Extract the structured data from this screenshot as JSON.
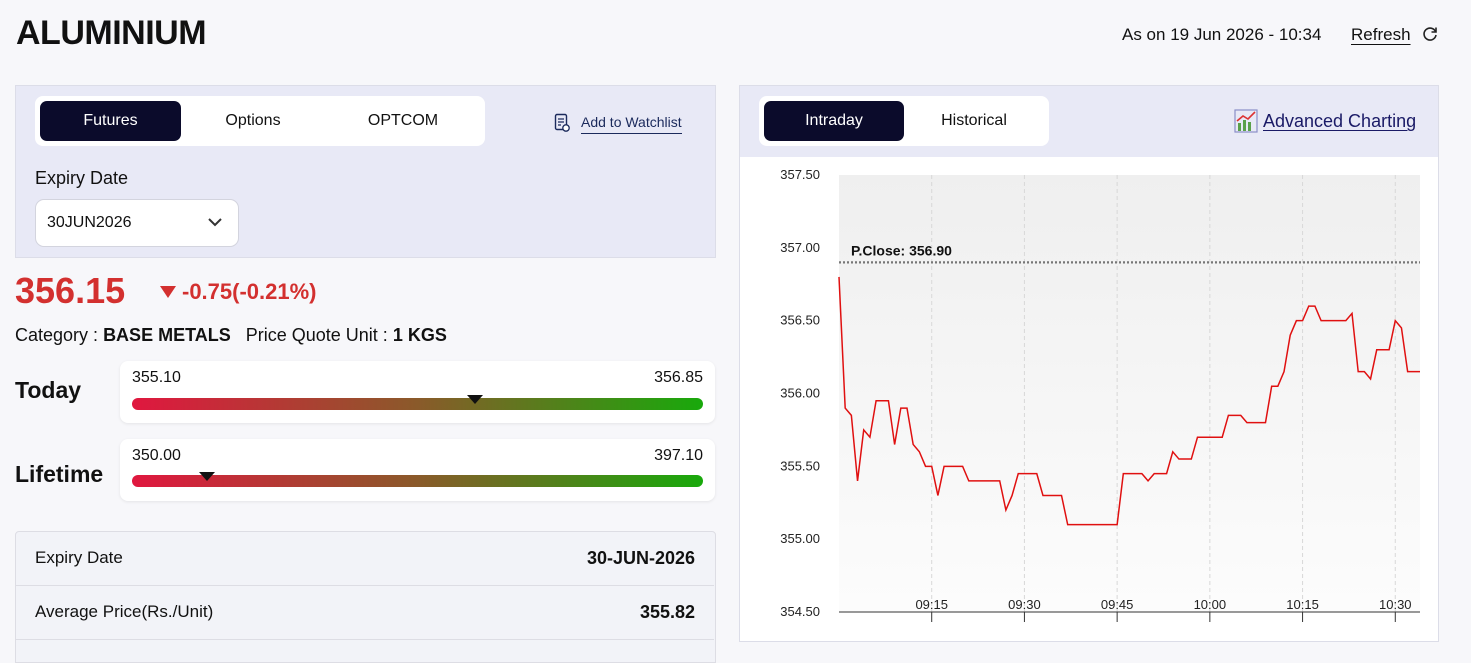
{
  "header": {
    "title": "ALUMINIUM",
    "as_on": "As on 19 Jun 2026 - 10:34",
    "refresh": "Refresh"
  },
  "left_panel": {
    "tabs": [
      "Futures",
      "Options",
      "OPTCOM"
    ],
    "active_tab": 0,
    "watchlist": "Add to Watchlist",
    "expiry_label": "Expiry Date",
    "expiry_select": "30JUN2026"
  },
  "quote": {
    "price": 356.15,
    "change": "-0.75(-0.21%)",
    "category_label": "Category :",
    "category": "BASE METALS",
    "unit_label": "Price Quote Unit :",
    "unit": "1 KGS"
  },
  "ranges": [
    {
      "label": "Today",
      "low": {
        "value": 355.1,
        "label": "355.10"
      },
      "high": 356.85
    },
    {
      "label": "Lifetime",
      "low": {
        "value": 350,
        "label": "350.00"
      },
      "high": {
        "value": 397.1,
        "label": "397.10"
      }
    }
  ],
  "table": {
    "rows": [
      [
        "Expiry Date",
        "30-JUN-2026"
      ],
      [
        "Average Price(Rs./Unit)",
        "355.82"
      ]
    ]
  },
  "right_panel": {
    "tabs": [
      "Intraday",
      "Historical"
    ],
    "active_tab": 0,
    "advanced": "Advanced Charting"
  },
  "chart_data": {
    "type": "line",
    "color": "#e01010",
    "grid": true,
    "x": [
      "09:00",
      "09:01",
      "09:02",
      "09:03",
      "09:04",
      "09:05",
      "09:06",
      "09:08",
      "09:09",
      "09:10",
      "09:11",
      "09:12",
      "09:13",
      "09:14",
      "09:15",
      "09:16",
      "09:17",
      "09:20",
      "09:21",
      "09:26",
      "09:27",
      "09:28",
      "09:29",
      "09:32",
      "09:33",
      "09:36",
      "09:37",
      "09:45",
      "09:46",
      "09:49",
      "09:50",
      "09:51",
      "09:53",
      "09:54",
      "09:55",
      "09:57",
      "09:58",
      "10:02",
      "10:03",
      "10:05",
      "10:06",
      "10:09",
      "10:10",
      "10:11",
      "10:12",
      "10:13",
      "10:14",
      "10:15",
      "10:16",
      "10:17",
      "10:18",
      "10:22",
      "10:23",
      "10:24",
      "10:25",
      "10:26",
      "10:27",
      "10:29",
      "10:30",
      "10:31",
      "10:32",
      "10:34"
    ],
    "values": [
      356.8,
      355.9,
      355.85,
      355.4,
      355.75,
      355.7,
      355.95,
      355.95,
      355.65,
      355.9,
      355.9,
      355.65,
      355.6,
      355.5,
      355.5,
      355.3,
      355.5,
      355.5,
      355.4,
      355.4,
      355.2,
      355.3,
      355.45,
      355.45,
      355.3,
      355.3,
      355.1,
      355.1,
      355.45,
      355.45,
      355.4,
      355.45,
      355.45,
      355.6,
      355.55,
      355.55,
      355.7,
      355.7,
      355.85,
      355.85,
      355.8,
      355.8,
      356.05,
      356.05,
      356.15,
      356.4,
      356.5,
      356.5,
      356.6,
      356.6,
      356.5,
      356.5,
      356.55,
      356.15,
      356.15,
      356.1,
      356.3,
      356.3,
      356.5,
      356.45,
      356.15,
      356.15
    ],
    "xlim": [
      "09:00",
      "10:34"
    ],
    "xticks": [
      "09:15",
      "09:30",
      "09:45",
      "10:00",
      "10:15",
      "10:30"
    ],
    "ylim": [
      354.5,
      357.5
    ],
    "yticks": [
      {
        "value": 354.5,
        "label": "354.50"
      },
      {
        "value": 355,
        "label": "355.00"
      },
      {
        "value": 355.5,
        "label": "355.50"
      },
      {
        "value": 356,
        "label": "356.00"
      },
      {
        "value": 356.5,
        "label": "356.50"
      },
      {
        "value": 357,
        "label": "357.00"
      },
      {
        "value": 357.5,
        "label": "357.50"
      }
    ],
    "reference": {
      "value": 356.9,
      "label": "P.Close: 356.90"
    }
  }
}
